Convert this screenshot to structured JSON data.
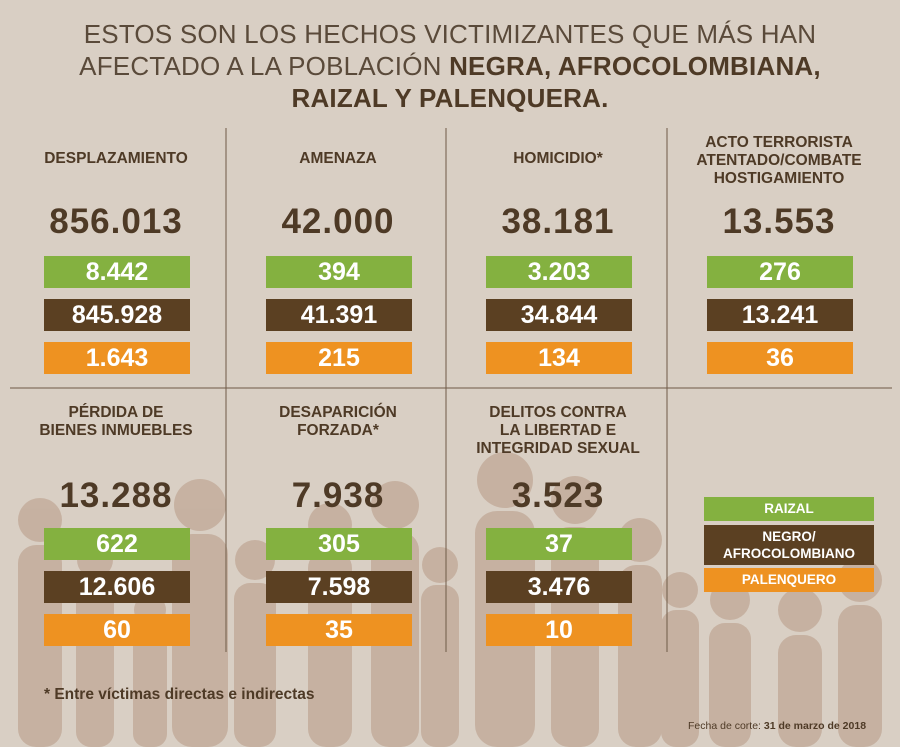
{
  "title": {
    "line1": "ESTOS SON LOS HECHOS VICTIMIZANTES QUE MÁS HAN",
    "line2_regular": "AFECTADO A LA POBLACIÓN",
    "line2_bold": "NEGRA, AFROCOLOMBIANA,",
    "line3_bold": "RAIZAL Y PALENQUERA."
  },
  "chart_data": {
    "type": "table",
    "categories": [
      "DESPLAZAMIENTO",
      "AMENAZA",
      "HOMICIDIO*",
      "ACTO TERRORISTA ATENTADO/COMBATE HOSTIGAMIENTO",
      "PÉRDIDA DE BIENES INMUEBLES",
      "DESAPARICIÓN FORZADA*",
      "DELITOS CONTRA LA LIBERTAD E INTEGRIDAD SEXUAL"
    ],
    "cells": [
      {
        "label_lines": [
          "DESPLAZAMIENTO"
        ],
        "total": "856.013",
        "raizal": "8.442",
        "negro": "845.928",
        "palenquero": "1.643"
      },
      {
        "label_lines": [
          "AMENAZA"
        ],
        "total": "42.000",
        "raizal": "394",
        "negro": "41.391",
        "palenquero": "215"
      },
      {
        "label_lines": [
          "HOMICIDIO*"
        ],
        "total": "38.181",
        "raizal": "3.203",
        "negro": "34.844",
        "palenquero": "134"
      },
      {
        "label_lines": [
          "ACTO TERRORISTA",
          "ATENTADO/COMBATE",
          "HOSTIGAMIENTO"
        ],
        "total": "13.553",
        "raizal": "276",
        "negro": "13.241",
        "palenquero": "36"
      },
      {
        "label_lines": [
          "PÉRDIDA DE",
          "BIENES INMUEBLES"
        ],
        "total": "13.288",
        "raizal": "622",
        "negro": "12.606",
        "palenquero": "60"
      },
      {
        "label_lines": [
          "DESAPARICIÓN",
          "FORZADA*"
        ],
        "total": "7.938",
        "raizal": "305",
        "negro": "7.598",
        "palenquero": "35"
      },
      {
        "label_lines": [
          "DELITOS CONTRA",
          "LA LIBERTAD E",
          "INTEGRIDAD SEXUAL"
        ],
        "total": "3.523",
        "raizal": "37",
        "negro": "3.476",
        "palenquero": "10"
      }
    ],
    "series": [
      {
        "name": "RAIZAL",
        "color": "#84b140"
      },
      {
        "name": "NEGRO/ AFROCOLOMBIANO",
        "color": "#5b4022"
      },
      {
        "name": "PALENQUERO",
        "color": "#ee9221"
      }
    ]
  },
  "legend": {
    "raizal": "RAIZAL",
    "negro_line1": "NEGRO/",
    "negro_line2": "AFROCOLOMBIANO",
    "palenquero": "PALENQUERO"
  },
  "footnote": "* Entre víctimas directas e indirectas",
  "date": {
    "label": "Fecha de corte:",
    "value": "31 de marzo de 2018"
  },
  "colors": {
    "background": "#d9cfc4",
    "raizal": "#84b140",
    "negro": "#5b4022",
    "palenquero": "#ee9221",
    "text": "#4e3a26"
  }
}
